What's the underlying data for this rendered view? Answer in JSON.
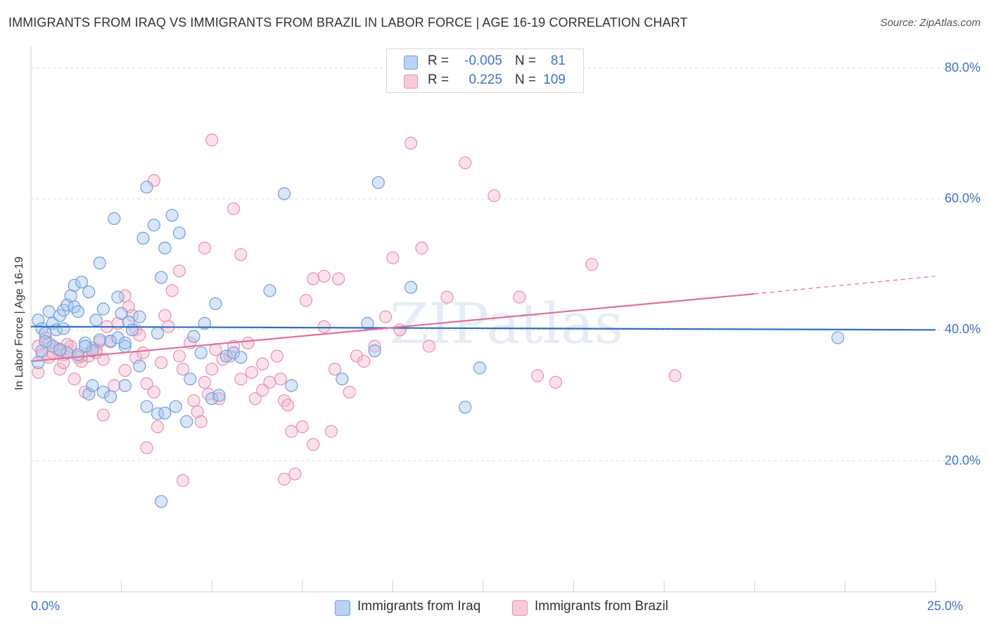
{
  "header": {
    "title": "IMMIGRANTS FROM IRAQ VS IMMIGRANTS FROM BRAZIL IN LABOR FORCE | AGE 16-19 CORRELATION CHART",
    "source": "Source: ZipAtlas.com"
  },
  "watermark": "ZIPatlas",
  "legend": {
    "r_label": "R =",
    "n_label": "N =",
    "rows": [
      {
        "name": "Immigrants from Iraq",
        "r": "-0.005",
        "n": "81"
      },
      {
        "name": "Immigrants from Brazil",
        "r": "0.225",
        "n": "109"
      }
    ]
  },
  "chart_data": {
    "type": "scatter",
    "xlabel": "",
    "ylabel": "In Labor Force | Age 16-19",
    "xlim": [
      0,
      25
    ],
    "ylim": [
      0,
      82
    ],
    "x_tick_labels": [
      {
        "value": 0,
        "label": "0.0%"
      },
      {
        "value": 25,
        "label": "25.0%"
      }
    ],
    "y_tick_labels": [
      {
        "value": 20,
        "label": "20.0%"
      },
      {
        "value": 40,
        "label": "40.0%"
      },
      {
        "value": 60,
        "label": "60.0%"
      },
      {
        "value": 80,
        "label": "80.0%"
      }
    ],
    "grid": "horizontal dashed",
    "legend_position": "top-center",
    "colors": {
      "iraq_fill": "#a9c8f0",
      "iraq_stroke": "#6f9fde",
      "iraq_line": "#2f6cc7",
      "brazil_fill": "#f6bcd0",
      "brazil_stroke": "#ec8fb0",
      "brazil_line": "#e0709a",
      "axis_text": "#3f74c9"
    },
    "series": [
      {
        "name": "Immigrants from Iraq",
        "trend": {
          "x": [
            0,
            25
          ],
          "y": [
            40.5,
            40.0
          ]
        },
        "points": [
          [
            0.2,
            41.5
          ],
          [
            0.3,
            40.2
          ],
          [
            0.4,
            39.5
          ],
          [
            0.5,
            42.8
          ],
          [
            0.6,
            41.0
          ],
          [
            0.7,
            40.0
          ],
          [
            0.8,
            42.2
          ],
          [
            0.9,
            43.0
          ],
          [
            1.0,
            43.8
          ],
          [
            1.1,
            45.2
          ],
          [
            1.2,
            43.5
          ],
          [
            1.3,
            42.8
          ],
          [
            1.2,
            46.8
          ],
          [
            1.4,
            47.3
          ],
          [
            1.6,
            45.8
          ],
          [
            1.8,
            41.5
          ],
          [
            1.9,
            50.2
          ],
          [
            2.0,
            43.2
          ],
          [
            2.2,
            38.3
          ],
          [
            2.4,
            45.0
          ],
          [
            2.5,
            42.5
          ],
          [
            2.6,
            37.5
          ],
          [
            2.7,
            41.2
          ],
          [
            2.8,
            40.0
          ],
          [
            2.3,
            57.0
          ],
          [
            3.2,
            61.8
          ],
          [
            3.1,
            54.0
          ],
          [
            3.4,
            56.0
          ],
          [
            3.6,
            48.0
          ],
          [
            3.7,
            52.5
          ],
          [
            3.9,
            57.5
          ],
          [
            4.1,
            54.8
          ],
          [
            3.5,
            39.5
          ],
          [
            3.0,
            42.0
          ],
          [
            3.2,
            28.3
          ],
          [
            3.5,
            27.2
          ],
          [
            3.7,
            27.3
          ],
          [
            4.0,
            28.3
          ],
          [
            4.3,
            26.0
          ],
          [
            4.4,
            32.5
          ],
          [
            4.5,
            39.0
          ],
          [
            4.7,
            36.5
          ],
          [
            4.8,
            41.0
          ],
          [
            5.0,
            29.5
          ],
          [
            5.1,
            44.0
          ],
          [
            5.2,
            30.0
          ],
          [
            5.4,
            36.0
          ],
          [
            5.6,
            36.5
          ],
          [
            5.8,
            35.8
          ],
          [
            3.6,
            13.8
          ],
          [
            7.0,
            60.8
          ],
          [
            6.6,
            46.0
          ],
          [
            7.2,
            31.5
          ],
          [
            1.6,
            30.2
          ],
          [
            1.7,
            31.5
          ],
          [
            2.0,
            30.5
          ],
          [
            2.2,
            29.8
          ],
          [
            2.6,
            31.5
          ],
          [
            3.0,
            34.5
          ],
          [
            1.5,
            38.0
          ],
          [
            1.0,
            36.5
          ],
          [
            0.6,
            37.5
          ],
          [
            0.3,
            36.8
          ],
          [
            0.2,
            35.0
          ],
          [
            0.4,
            38.2
          ],
          [
            0.8,
            37.0
          ],
          [
            1.3,
            36.2
          ],
          [
            2.4,
            38.8
          ],
          [
            2.6,
            38.0
          ],
          [
            1.7,
            36.8
          ],
          [
            0.9,
            40.2
          ],
          [
            1.5,
            37.5
          ],
          [
            1.9,
            38.5
          ],
          [
            9.6,
            62.5
          ],
          [
            10.5,
            46.5
          ],
          [
            9.5,
            36.8
          ],
          [
            9.3,
            41.0
          ],
          [
            12.0,
            28.2
          ],
          [
            12.4,
            34.2
          ],
          [
            8.6,
            32.5
          ],
          [
            22.3,
            38.8
          ]
        ]
      },
      {
        "name": "Immigrants from Brazil",
        "trend": {
          "x": [
            0,
            20
          ],
          "y": [
            35.2,
            45.5
          ]
        },
        "trend_extension": {
          "x": [
            20,
            25
          ],
          "y": [
            45.5,
            48.2
          ]
        },
        "points": [
          [
            0.2,
            37.5
          ],
          [
            0.3,
            36.2
          ],
          [
            0.4,
            38.8
          ],
          [
            0.5,
            35.8
          ],
          [
            0.6,
            36.5
          ],
          [
            0.7,
            37.2
          ],
          [
            0.8,
            34.0
          ],
          [
            0.9,
            36.2
          ],
          [
            1.0,
            37.8
          ],
          [
            1.1,
            36.8
          ],
          [
            1.2,
            32.5
          ],
          [
            1.4,
            35.2
          ],
          [
            1.5,
            30.5
          ],
          [
            1.6,
            36.0
          ],
          [
            1.8,
            37.0
          ],
          [
            1.9,
            38.2
          ],
          [
            2.0,
            35.5
          ],
          [
            2.1,
            40.5
          ],
          [
            2.2,
            38.2
          ],
          [
            2.4,
            41.0
          ],
          [
            2.6,
            45.2
          ],
          [
            2.7,
            43.5
          ],
          [
            2.8,
            42.2
          ],
          [
            2.9,
            40.0
          ],
          [
            3.0,
            39.2
          ],
          [
            3.2,
            31.8
          ],
          [
            3.4,
            30.5
          ],
          [
            3.5,
            25.2
          ],
          [
            3.7,
            42.2
          ],
          [
            3.8,
            40.5
          ],
          [
            3.9,
            46.0
          ],
          [
            4.1,
            49.0
          ],
          [
            3.4,
            62.8
          ],
          [
            3.2,
            22.0
          ],
          [
            4.2,
            34.0
          ],
          [
            4.4,
            38.0
          ],
          [
            4.5,
            29.2
          ],
          [
            4.6,
            27.5
          ],
          [
            4.7,
            26.0
          ],
          [
            4.8,
            32.0
          ],
          [
            5.0,
            34.0
          ],
          [
            5.1,
            37.0
          ],
          [
            5.2,
            29.5
          ],
          [
            5.5,
            36.0
          ],
          [
            5.6,
            37.5
          ],
          [
            5.8,
            32.5
          ],
          [
            5.0,
            69.0
          ],
          [
            5.6,
            58.5
          ],
          [
            5.8,
            51.5
          ],
          [
            4.8,
            52.5
          ],
          [
            6.0,
            38.0
          ],
          [
            6.2,
            29.5
          ],
          [
            6.4,
            34.8
          ],
          [
            6.6,
            32.0
          ],
          [
            6.8,
            36.0
          ],
          [
            7.0,
            29.2
          ],
          [
            7.2,
            24.5
          ],
          [
            7.5,
            25.2
          ],
          [
            7.8,
            22.5
          ],
          [
            7.6,
            44.5
          ],
          [
            7.8,
            47.8
          ],
          [
            8.1,
            48.2
          ],
          [
            8.3,
            24.5
          ],
          [
            8.5,
            47.8
          ],
          [
            8.8,
            30.5
          ],
          [
            9.0,
            36.0
          ],
          [
            9.5,
            37.5
          ],
          [
            9.8,
            42.0
          ],
          [
            10.0,
            51.0
          ],
          [
            10.5,
            68.5
          ],
          [
            10.8,
            52.5
          ],
          [
            11.0,
            37.5
          ],
          [
            11.5,
            45.0
          ],
          [
            12.0,
            65.5
          ],
          [
            12.8,
            60.5
          ],
          [
            13.5,
            45.0
          ],
          [
            14.0,
            33.0
          ],
          [
            14.5,
            32.0
          ],
          [
            15.5,
            50.0
          ],
          [
            17.8,
            33.0
          ],
          [
            7.0,
            17.2
          ],
          [
            7.3,
            18.0
          ],
          [
            4.2,
            17.0
          ],
          [
            2.0,
            27.0
          ],
          [
            1.4,
            36.0
          ],
          [
            2.6,
            33.8
          ],
          [
            0.9,
            35.0
          ],
          [
            1.7,
            37.2
          ],
          [
            2.9,
            35.8
          ],
          [
            3.1,
            36.5
          ],
          [
            4.1,
            36.0
          ],
          [
            5.3,
            35.5
          ],
          [
            6.1,
            33.5
          ],
          [
            6.9,
            32.5
          ],
          [
            8.1,
            40.5
          ],
          [
            9.2,
            35.2
          ],
          [
            10.2,
            40.0
          ],
          [
            0.2,
            33.5
          ],
          [
            0.5,
            38.0
          ],
          [
            0.8,
            36.8
          ],
          [
            1.1,
            37.5
          ],
          [
            1.3,
            35.8
          ],
          [
            1.8,
            36.5
          ],
          [
            2.3,
            31.5
          ],
          [
            3.6,
            35.0
          ],
          [
            4.9,
            30.2
          ],
          [
            6.4,
            30.8
          ],
          [
            7.1,
            28.5
          ],
          [
            8.4,
            34.0
          ]
        ]
      }
    ]
  }
}
